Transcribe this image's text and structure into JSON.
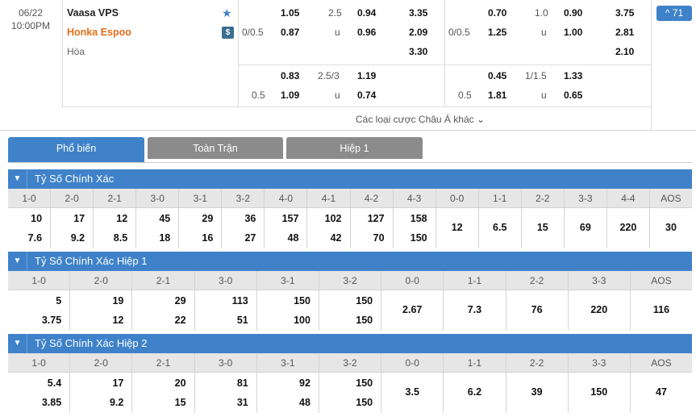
{
  "match": {
    "date": "06/22",
    "time": "10:00PM",
    "home": "Vaasa VPS",
    "away": "Honka Espoo",
    "draw_label": "Hòa",
    "more_count": "^ 71",
    "other_bets_label": "Các loại cược Châu Á khác  ⌄"
  },
  "odds_full": {
    "row1": {
      "home": "1.05",
      "line": "2.5",
      "over": "0.94",
      "x1": "3.35"
    },
    "row2": {
      "hcap": "0/0.5",
      "home": "0.87",
      "u": "u",
      "under": "0.96",
      "x2": "2.09"
    },
    "row3": {
      "x3": "3.30"
    },
    "row4": {
      "home": "0.83",
      "line": "2.5/3",
      "over": "1.19"
    },
    "row5": {
      "hcap": "0.5",
      "home": "1.09",
      "u": "u",
      "under": "0.74"
    }
  },
  "odds_half": {
    "row1": {
      "home": "0.70",
      "line": "1.0",
      "over": "0.90",
      "x1": "3.75"
    },
    "row2": {
      "hcap": "0/0.5",
      "home": "1.25",
      "u": "u",
      "under": "1.00",
      "x2": "2.81"
    },
    "row3": {
      "x3": "2.10"
    },
    "row4": {
      "home": "0.45",
      "line": "1/1.5",
      "over": "1.33"
    },
    "row5": {
      "hcap": "0.5",
      "home": "1.81",
      "u": "u",
      "under": "0.65"
    }
  },
  "tabs": [
    "Phổ biến",
    "Toàn Trận",
    "Hiệp 1"
  ],
  "sections": [
    {
      "title": "Tỷ Số Chính Xác",
      "columns": [
        {
          "h": "1-0",
          "a": "10",
          "b": "7.6"
        },
        {
          "h": "2-0",
          "a": "17",
          "b": "9.2"
        },
        {
          "h": "2-1",
          "a": "12",
          "b": "8.5"
        },
        {
          "h": "3-0",
          "a": "45",
          "b": "18"
        },
        {
          "h": "3-1",
          "a": "29",
          "b": "16"
        },
        {
          "h": "3-2",
          "a": "36",
          "b": "27"
        },
        {
          "h": "4-0",
          "a": "157",
          "b": "48"
        },
        {
          "h": "4-1",
          "a": "102",
          "b": "42"
        },
        {
          "h": "4-2",
          "a": "127",
          "b": "70"
        },
        {
          "h": "4-3",
          "a": "158",
          "b": "150"
        },
        {
          "h": "0-0",
          "c": "12"
        },
        {
          "h": "1-1",
          "c": "6.5"
        },
        {
          "h": "2-2",
          "c": "15"
        },
        {
          "h": "3-3",
          "c": "69"
        },
        {
          "h": "4-4",
          "c": "220"
        },
        {
          "h": "AOS",
          "c": "30"
        }
      ]
    },
    {
      "title": "Tỷ Số Chính Xác Hiệp 1",
      "columns": [
        {
          "h": "1-0",
          "a": "5",
          "b": "3.75"
        },
        {
          "h": "2-0",
          "a": "19",
          "b": "12"
        },
        {
          "h": "2-1",
          "a": "29",
          "b": "22"
        },
        {
          "h": "3-0",
          "a": "113",
          "b": "51"
        },
        {
          "h": "3-1",
          "a": "150",
          "b": "100"
        },
        {
          "h": "3-2",
          "a": "150",
          "b": "150"
        },
        {
          "h": "0-0",
          "c": "2.67"
        },
        {
          "h": "1-1",
          "c": "7.3"
        },
        {
          "h": "2-2",
          "c": "76"
        },
        {
          "h": "3-3",
          "c": "220"
        },
        {
          "h": "AOS",
          "c": "116"
        }
      ]
    },
    {
      "title": "Tỷ Số Chính Xác Hiệp 2",
      "columns": [
        {
          "h": "1-0",
          "a": "5.4",
          "b": "3.85"
        },
        {
          "h": "2-0",
          "a": "17",
          "b": "9.2"
        },
        {
          "h": "2-1",
          "a": "20",
          "b": "15"
        },
        {
          "h": "3-0",
          "a": "81",
          "b": "31"
        },
        {
          "h": "3-1",
          "a": "92",
          "b": "48"
        },
        {
          "h": "3-2",
          "a": "150",
          "b": "150"
        },
        {
          "h": "0-0",
          "c": "3.5"
        },
        {
          "h": "1-1",
          "c": "6.2"
        },
        {
          "h": "2-2",
          "c": "39"
        },
        {
          "h": "3-3",
          "c": "150"
        },
        {
          "h": "AOS",
          "c": "47"
        }
      ]
    }
  ]
}
